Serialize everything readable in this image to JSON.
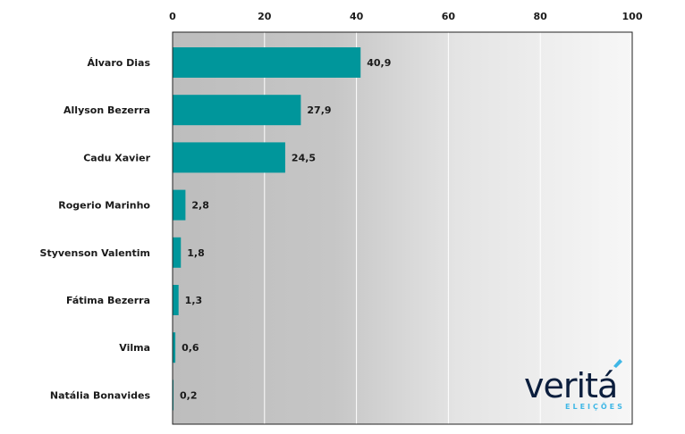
{
  "chart_data": {
    "type": "bar",
    "orientation": "horizontal",
    "title": "",
    "xlabel": "",
    "ylabel": "",
    "categories": [
      "Álvaro Dias",
      "Allyson Bezerra",
      "Cadu Xavier",
      "Rogerio Marinho",
      "Styvenson Valentim",
      "Fátima Bezerra",
      "Vilma",
      "Natália Bonavides"
    ],
    "values": [
      40.9,
      27.9,
      24.5,
      2.8,
      1.8,
      1.3,
      0.6,
      0.2
    ],
    "data_labels": [
      "40,9",
      "27,9",
      "24,5",
      "2,8",
      "1,8",
      "1,3",
      "0,6",
      "0,2"
    ],
    "xlim": [
      0,
      100
    ],
    "x_ticks": [
      0,
      20,
      40,
      60,
      80,
      100
    ],
    "x_tick_labels": [
      "0",
      "20",
      "40",
      "60",
      "80",
      "100"
    ],
    "x_axis_position": "top",
    "grid": true,
    "legend": "none",
    "bar_color": "#00969b",
    "background": "gradient gray to white, left to right"
  },
  "logo": {
    "brand": "veritá",
    "subtitle": "ELEIÇÕES",
    "brand_color": "#0b1e3d",
    "accent_color": "#3fb7e6"
  }
}
